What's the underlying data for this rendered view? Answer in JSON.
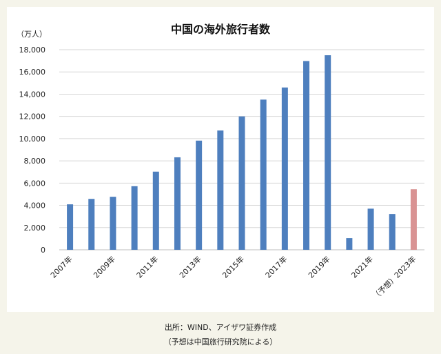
{
  "chart_data": {
    "type": "bar",
    "title": "中国の海外旅行者数",
    "unit_label": "（万人）",
    "ylim": [
      0,
      18000
    ],
    "y_ticks": [
      "0",
      "2,000",
      "4,000",
      "6,000",
      "8,000",
      "10,000",
      "12,000",
      "14,000",
      "16,000",
      "18,000"
    ],
    "categories": [
      "2007年",
      "2008年",
      "2009年",
      "2010年",
      "2011年",
      "2012年",
      "2013年",
      "2014年",
      "2015年",
      "2016年",
      "2017年",
      "2018年",
      "2019年",
      "2020年",
      "2021年",
      "2022年",
      "（予想）2023年"
    ],
    "x_tick_labels_shown": [
      "2007年",
      "2009年",
      "2011年",
      "2013年",
      "2015年",
      "2017年",
      "2019年",
      "2021年",
      "（予想）2023年"
    ],
    "series": [
      {
        "values": [
          4090,
          4580,
          4770,
          5720,
          7030,
          8320,
          9820,
          10730,
          12000,
          13510,
          14600,
          16980,
          17500,
          1050,
          3700,
          3220,
          5450
        ]
      }
    ],
    "colors": {
      "actual": "#4e7fbe",
      "forecast": "#d99393",
      "grid": "#d6d6d6"
    },
    "grid": true,
    "legend": false
  },
  "footer": {
    "source": "出所：WIND、アイザワ証券作成",
    "note": "（予想は中国旅行研究院による）"
  }
}
